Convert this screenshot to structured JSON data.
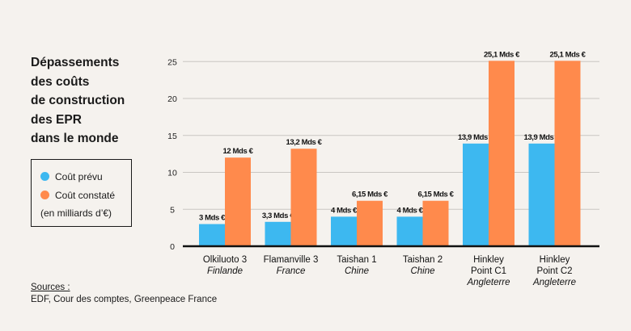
{
  "title_lines": [
    "Dépassements",
    "des coûts",
    "de construction",
    "des EPR",
    "dans le monde"
  ],
  "legend": {
    "planned": "Coût prévu",
    "actual": "Coût constaté",
    "unit_note": "(en milliards d’€)"
  },
  "sources": {
    "label": "Sources :",
    "text": "EDF, Cour des comptes, Greenpeace France"
  },
  "colors": {
    "planned": "#3db8f0",
    "actual": "#ff8a4c",
    "grid": "#c9c6c2",
    "axis": "#111111"
  },
  "chart_data": {
    "type": "bar",
    "categories": [
      {
        "name": "Olkiluoto 3",
        "country": "Finlande"
      },
      {
        "name": "Flamanville 3",
        "country": "France"
      },
      {
        "name": "Taishan 1",
        "country": "Chine"
      },
      {
        "name": "Taishan 2",
        "country": "Chine"
      },
      {
        "name": "Hinkley Point C1",
        "country": "Angleterre"
      },
      {
        "name": "Hinkley Point C2",
        "country": "Angleterre"
      }
    ],
    "series": [
      {
        "name": "Coût prévu",
        "values": [
          3,
          3.3,
          4,
          4,
          13.9,
          13.9
        ],
        "labels": [
          "3 Mds €",
          "3,3 Mds €",
          "4 Mds €",
          "4 Mds €",
          "13,9 Mds €",
          "13,9 Mds €"
        ]
      },
      {
        "name": "Coût constaté",
        "values": [
          12,
          13.2,
          6.15,
          6.15,
          25.1,
          25.1
        ],
        "labels": [
          "12 Mds €",
          "13,2 Mds €",
          "6,15 Mds €",
          "6,15 Mds €",
          "25,1 Mds €",
          "25,1 Mds €"
        ]
      }
    ],
    "yticks": [
      0,
      5,
      10,
      15,
      20,
      25
    ],
    "ylim": [
      0,
      25
    ],
    "grid": true
  }
}
